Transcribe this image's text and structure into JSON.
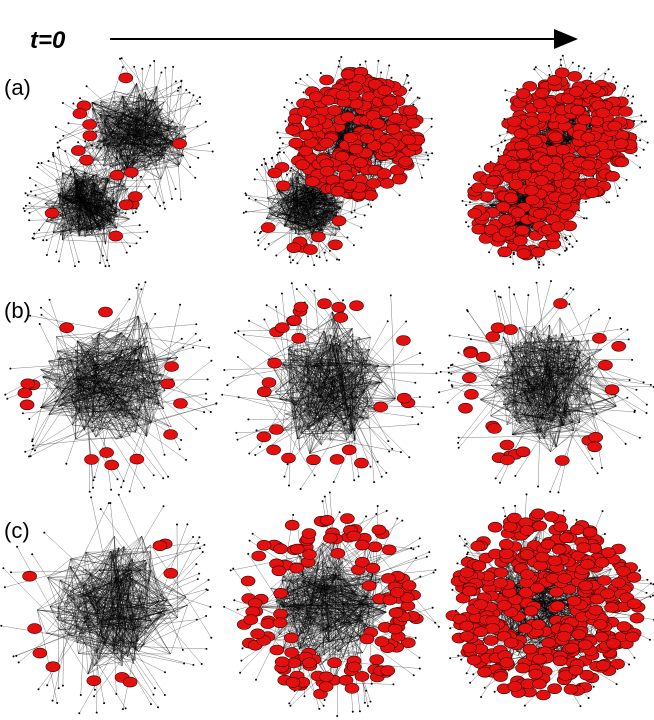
{
  "header": {
    "title": "t=0"
  },
  "rows": [
    {
      "label": "(a)"
    },
    {
      "label": "(b)"
    },
    {
      "label": "(c)"
    }
  ]
}
